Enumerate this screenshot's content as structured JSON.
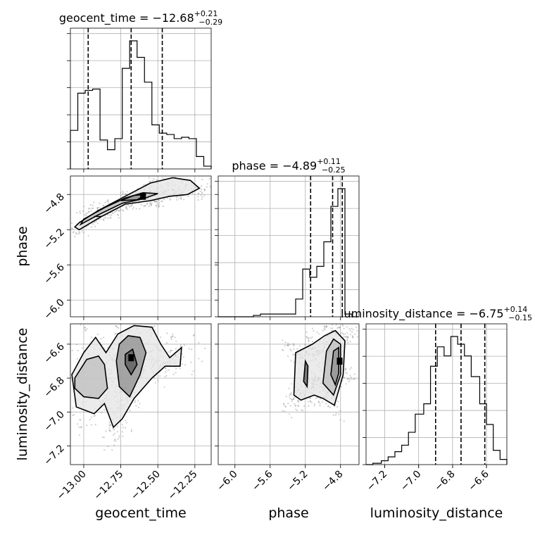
{
  "chart_data": {
    "type": "corner",
    "parameters": [
      {
        "name": "geocent_time",
        "label": "geocent_time",
        "title": {
          "prefix": "geocent_time = ",
          "median": "−12.68",
          "plus": "+0.21",
          "minus": "−0.29"
        },
        "range": [
          -13.09,
          -12.14
        ],
        "ticks": [
          -13.0,
          -12.75,
          -12.5,
          -12.25
        ],
        "tick_labels": [
          "−13.00",
          "−12.75",
          "−12.50",
          "−12.25"
        ],
        "quantiles": [
          -12.97,
          -12.68,
          -12.47
        ],
        "hist_edges": [
          -13.09,
          -13.04,
          -12.99,
          -12.94,
          -12.89,
          -12.84,
          -12.79,
          -12.74,
          -12.69,
          -12.64,
          -12.59,
          -12.54,
          -12.49,
          -12.44,
          -12.39,
          -12.34,
          -12.29,
          -12.24,
          -12.19,
          -12.14
        ],
        "hist_counts": [
          0.28,
          0.55,
          0.57,
          0.58,
          0.21,
          0.14,
          0.22,
          0.73,
          0.93,
          0.81,
          0.63,
          0.32,
          0.26,
          0.25,
          0.22,
          0.23,
          0.22,
          0.09,
          0.02
        ]
      },
      {
        "name": "phase",
        "label": "phase",
        "title": {
          "prefix": "phase = ",
          "median": "−4.89",
          "plus": "+0.11",
          "minus": "−0.25"
        },
        "range": [
          -6.19,
          -4.59
        ],
        "ticks": [
          -6.0,
          -5.6,
          -5.2,
          -4.8
        ],
        "tick_labels": [
          "−6.0",
          "−5.6",
          "−5.2",
          "−4.8"
        ],
        "quantiles": [
          -5.14,
          -4.89,
          -4.78
        ],
        "hist_edges": [
          -6.19,
          -6.11,
          -6.03,
          -5.95,
          -5.87,
          -5.79,
          -5.71,
          -5.63,
          -5.55,
          -5.47,
          -5.39,
          -5.31,
          -5.23,
          -5.15,
          -5.07,
          -4.99,
          -4.91,
          -4.83,
          -4.75,
          -4.67,
          -4.59
        ],
        "hist_counts": [
          0.0,
          0.0,
          0.0,
          0.0,
          0.0,
          0.01,
          0.02,
          0.02,
          0.02,
          0.02,
          0.02,
          0.13,
          0.35,
          0.29,
          0.37,
          0.55,
          0.81,
          0.94,
          0.02,
          0.0
        ]
      },
      {
        "name": "luminosity_distance",
        "label": "luminosity_distance",
        "title": {
          "prefix": "luminosity_distance = ",
          "median": "−6.75",
          "plus": "+0.14",
          "minus": "−0.15"
        },
        "range": [
          -7.31,
          -6.48
        ],
        "ticks": [
          -7.2,
          -7.0,
          -6.8,
          -6.6
        ],
        "tick_labels": [
          "−7.2",
          "−7.0",
          "−6.8",
          "−6.6"
        ],
        "quantiles": [
          -6.9,
          -6.75,
          -6.61
        ],
        "hist_edges": [
          -7.31,
          -7.27,
          -7.22,
          -7.18,
          -7.14,
          -7.1,
          -7.06,
          -7.02,
          -6.97,
          -6.93,
          -6.89,
          -6.85,
          -6.81,
          -6.77,
          -6.73,
          -6.69,
          -6.64,
          -6.6,
          -6.56,
          -6.52,
          -6.48
        ],
        "hist_counts": [
          0.0,
          0.01,
          0.03,
          0.06,
          0.1,
          0.15,
          0.25,
          0.39,
          0.47,
          0.76,
          0.91,
          0.84,
          0.99,
          0.93,
          0.84,
          0.68,
          0.47,
          0.31,
          0.11,
          0.04
        ]
      }
    ],
    "pairs": [
      {
        "x": "geocent_time",
        "y": "phase",
        "contours": [
          [
            [
              -13.03,
              -5.12
            ],
            [
              -12.9,
              -4.98
            ],
            [
              -12.72,
              -4.82
            ],
            [
              -12.55,
              -4.67
            ],
            [
              -12.4,
              -4.61
            ],
            [
              -12.28,
              -4.64
            ],
            [
              -12.22,
              -4.73
            ],
            [
              -12.3,
              -4.8
            ],
            [
              -12.42,
              -4.82
            ],
            [
              -12.55,
              -4.87
            ],
            [
              -12.72,
              -4.91
            ],
            [
              -12.88,
              -5.05
            ],
            [
              -13.03,
              -5.2
            ],
            [
              -13.06,
              -5.17
            ]
          ],
          [
            [
              -13.0,
              -5.08
            ],
            [
              -12.86,
              -4.95
            ],
            [
              -12.72,
              -4.84
            ],
            [
              -12.6,
              -4.78
            ],
            [
              -12.5,
              -4.79
            ],
            [
              -12.6,
              -4.85
            ],
            [
              -12.74,
              -4.9
            ],
            [
              -12.9,
              -5.03
            ],
            [
              -13.02,
              -5.14
            ]
          ],
          [
            [
              -12.75,
              -4.87
            ],
            [
              -12.66,
              -4.81
            ],
            [
              -12.58,
              -4.8
            ],
            [
              -12.64,
              -4.86
            ]
          ],
          [
            [
              -12.93,
              -5.05
            ],
            [
              -12.88,
              -5.05
            ]
          ]
        ],
        "mode": [
          -12.6,
          -4.82
        ]
      },
      {
        "x": "geocent_time",
        "y": "luminosity_distance",
        "contours": [
          [
            [
              -13.08,
              -6.78
            ],
            [
              -13.0,
              -6.65
            ],
            [
              -12.92,
              -6.56
            ],
            [
              -12.85,
              -6.65
            ],
            [
              -12.77,
              -6.54
            ],
            [
              -12.66,
              -6.49
            ],
            [
              -12.54,
              -6.5
            ],
            [
              -12.48,
              -6.6
            ],
            [
              -12.42,
              -6.68
            ],
            [
              -12.34,
              -6.62
            ],
            [
              -12.35,
              -6.73
            ],
            [
              -12.45,
              -6.73
            ],
            [
              -12.54,
              -6.8
            ],
            [
              -12.66,
              -6.92
            ],
            [
              -12.74,
              -7.04
            ],
            [
              -12.8,
              -7.09
            ],
            [
              -12.86,
              -6.95
            ],
            [
              -12.93,
              -7.01
            ],
            [
              -13.05,
              -6.97
            ]
          ],
          [
            [
              -13.06,
              -6.8
            ],
            [
              -12.98,
              -6.69
            ],
            [
              -12.9,
              -6.67
            ],
            [
              -12.86,
              -6.72
            ],
            [
              -12.84,
              -6.86
            ],
            [
              -12.9,
              -6.92
            ],
            [
              -13.0,
              -6.91
            ],
            [
              -13.06,
              -6.86
            ]
          ],
          [
            [
              -12.76,
              -6.6
            ],
            [
              -12.7,
              -6.55
            ],
            [
              -12.62,
              -6.56
            ],
            [
              -12.58,
              -6.65
            ],
            [
              -12.62,
              -6.78
            ],
            [
              -12.69,
              -6.91
            ],
            [
              -12.76,
              -6.85
            ],
            [
              -12.78,
              -6.7
            ]
          ],
          [
            [
              -12.72,
              -6.66
            ],
            [
              -12.67,
              -6.63
            ],
            [
              -12.64,
              -6.72
            ],
            [
              -12.68,
              -6.78
            ],
            [
              -12.72,
              -6.72
            ]
          ]
        ],
        "mode": [
          -12.68,
          -6.68
        ]
      },
      {
        "x": "phase",
        "y": "luminosity_distance",
        "contours": [
          [
            [
              -5.33,
              -6.9
            ],
            [
              -5.31,
              -6.65
            ],
            [
              -5.12,
              -6.6
            ],
            [
              -4.98,
              -6.55
            ],
            [
              -4.86,
              -6.52
            ],
            [
              -4.75,
              -6.58
            ],
            [
              -4.77,
              -6.78
            ],
            [
              -4.87,
              -6.96
            ],
            [
              -5.0,
              -6.92
            ],
            [
              -5.1,
              -6.9
            ],
            [
              -5.25,
              -6.93
            ]
          ],
          [
            [
              -5.0,
              -6.83
            ],
            [
              -4.96,
              -6.64
            ],
            [
              -4.88,
              -6.57
            ],
            [
              -4.8,
              -6.6
            ],
            [
              -4.8,
              -6.78
            ],
            [
              -4.88,
              -6.9
            ]
          ],
          [
            [
              -4.91,
              -6.78
            ],
            [
              -4.88,
              -6.64
            ],
            [
              -4.82,
              -6.62
            ],
            [
              -4.82,
              -6.77
            ],
            [
              -4.86,
              -6.84
            ]
          ],
          [
            [
              -5.22,
              -6.82
            ],
            [
              -5.2,
              -6.7
            ],
            [
              -5.17,
              -6.73
            ],
            [
              -5.18,
              -6.85
            ]
          ]
        ],
        "mode": [
          -4.81,
          -6.7
        ]
      }
    ],
    "grid": true,
    "legend": "none"
  }
}
